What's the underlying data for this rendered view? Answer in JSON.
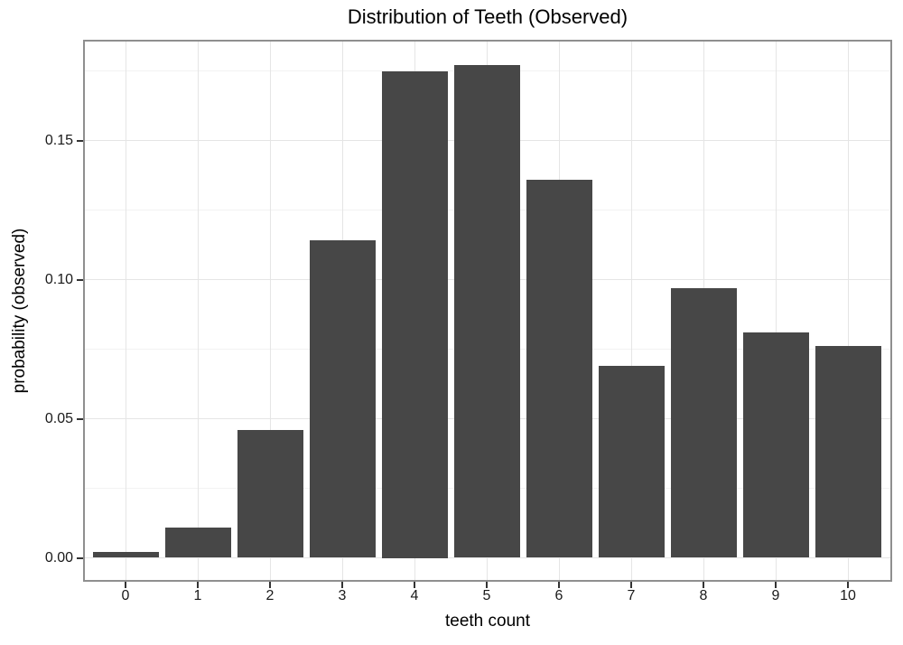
{
  "chart_data": {
    "type": "bar",
    "title": "Distribution of Teeth (Observed)",
    "xlabel": "teeth count",
    "ylabel": "probability (observed)",
    "categories": [
      "0",
      "1",
      "2",
      "3",
      "4",
      "5",
      "6",
      "7",
      "8",
      "9",
      "10"
    ],
    "values": [
      0.002,
      0.011,
      0.046,
      0.114,
      0.175,
      0.177,
      0.136,
      0.069,
      0.097,
      0.081,
      0.076
    ],
    "y_ticks": [
      {
        "label": "0.00",
        "value": 0.0
      },
      {
        "label": "0.05",
        "value": 0.05
      },
      {
        "label": "0.10",
        "value": 0.1
      },
      {
        "label": "0.15",
        "value": 0.15
      }
    ],
    "y_minor_ticks": [
      0.025,
      0.075,
      0.125,
      0.175
    ],
    "ylim": [
      0,
      0.186
    ],
    "grid": "horizontal major+minor, vertical major at category centers",
    "legend": "none",
    "colors": {
      "bar": "#474747",
      "grid_major": "#e5e5e5",
      "grid_minor": "#f2f2f2",
      "panel_border": "#8f8f8f",
      "background": "#ffffff",
      "title_text": "#000000",
      "tick_text": "#1a1a1a",
      "tick_mark": "#333333"
    }
  }
}
